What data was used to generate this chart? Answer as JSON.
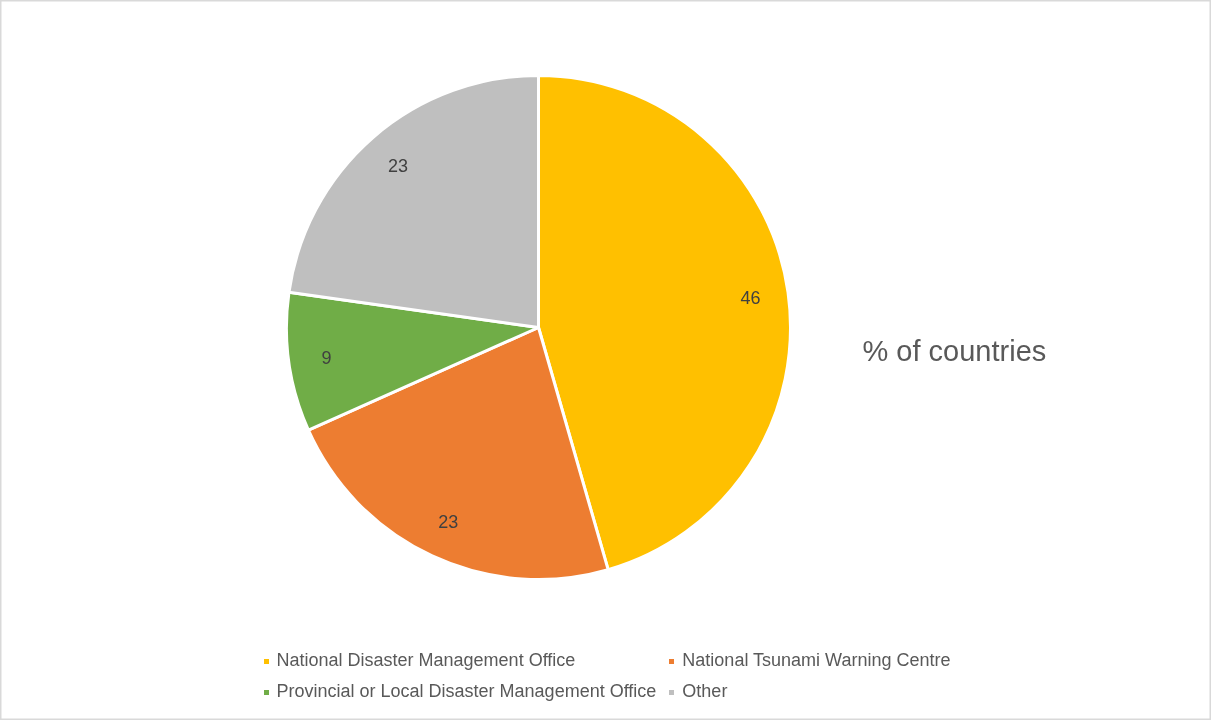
{
  "chart_data": {
    "type": "pie",
    "title": "% of countries",
    "categories": [
      "National Disaster Management Office",
      "National Tsunami Warning Centre",
      "Provincial or Local Disaster Management Office",
      "Other"
    ],
    "values": [
      46,
      23,
      9,
      23
    ],
    "colors": [
      "#ffc000",
      "#ed7d31",
      "#70ad47",
      "#bfbfbf"
    ],
    "data_labels": true,
    "legend": "bottom"
  }
}
